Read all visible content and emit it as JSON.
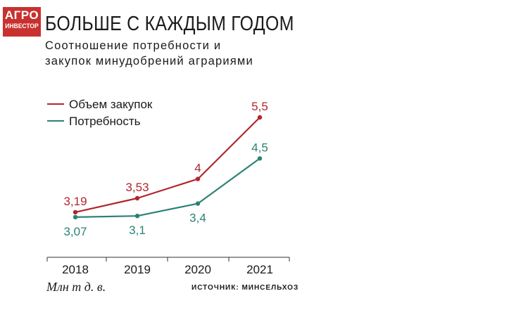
{
  "logo": {
    "line1": "АГРО",
    "line2": "ИНВЕСТОР"
  },
  "header": {
    "title": "БОЛЬШЕ С КАЖДЫМ ГОДОМ",
    "subtitle": "Соотношение потребности и закупок минудобрений аграриями"
  },
  "footer": {
    "unit": "Млн т д. в.",
    "source": "ИСТОЧНИК: МИНСЕЛЬХОЗ"
  },
  "chart_data": {
    "type": "line",
    "categories": [
      "2018",
      "2019",
      "2020",
      "2021"
    ],
    "series": [
      {
        "name": "Объем закупок",
        "color": "#b2262b",
        "values": [
          3.19,
          3.53,
          4,
          5.5
        ],
        "labels": [
          "3,19",
          "3,53",
          "4",
          "5,5"
        ]
      },
      {
        "name": "Потребность",
        "color": "#2c8275",
        "values": [
          3.07,
          3.1,
          3.4,
          4.5
        ],
        "labels": [
          "3,07",
          "3,1",
          "3,4",
          "4,5"
        ]
      }
    ],
    "legend": "top-left",
    "grid": false
  }
}
